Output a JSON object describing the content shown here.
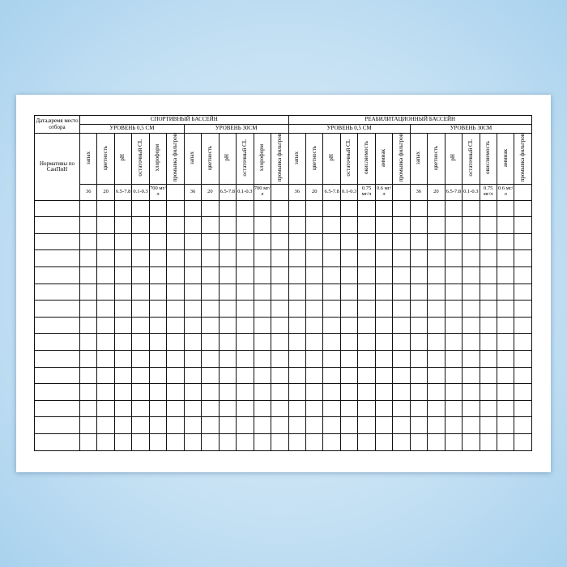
{
  "header": {
    "date_place": "Дата,время место отбора",
    "norms": "Нормативы по СанПиН"
  },
  "pools": [
    {
      "title": "СПОРТИВНЫЙ  БАССЕЙН",
      "levels": [
        {
          "title": "УРОВЕНЬ  0,5 СМ",
          "columns": [
            {
              "name": "запах",
              "norm": "36"
            },
            {
              "name": "цветность",
              "norm": "20"
            },
            {
              "name": "pH",
              "norm": "6.5-7.8"
            },
            {
              "name": "остаточный CL",
              "norm": "0.1-0.3"
            },
            {
              "name": "хлороформ",
              "norm": "700 мг/л"
            },
            {
              "name": "промывка фильтров"
            }
          ]
        },
        {
          "title": "УРОВЕНЬ 30СМ",
          "columns": [
            {
              "name": "запах",
              "norm": "36"
            },
            {
              "name": "цветность",
              "norm": "20"
            },
            {
              "name": "pH",
              "norm": "6.5-7.8"
            },
            {
              "name": "остаточный CL",
              "norm": "0.1-0.3"
            },
            {
              "name": "хлороформ",
              "norm": "700 мг/л"
            },
            {
              "name": "промывка фильтров"
            }
          ]
        }
      ]
    },
    {
      "title": "РЕАБИЛИТАЦИОННЫЙ  БАССЕЙН",
      "levels": [
        {
          "title": "УРОВЕНЬ  0,5 СМ",
          "columns": [
            {
              "name": "запах",
              "norm": "36"
            },
            {
              "name": "цветность",
              "norm": "20"
            },
            {
              "name": "pH",
              "norm": "6.5-7.8"
            },
            {
              "name": "остаточный CL",
              "norm": "0.1-0.3"
            },
            {
              "name": "окисляемость",
              "norm": "0.75 мг/л"
            },
            {
              "name": "аммиак",
              "norm": "0.6 мг/л"
            },
            {
              "name": "промывка фильтров"
            }
          ]
        },
        {
          "title": "УРОВЕНЬ 30СМ",
          "columns": [
            {
              "name": "запах",
              "norm": "36"
            },
            {
              "name": "цветность",
              "norm": "20"
            },
            {
              "name": "pH",
              "norm": "6.5-7.8"
            },
            {
              "name": "остаточный CL",
              "norm": "0.1-0.3"
            },
            {
              "name": "окисляемость",
              "norm": "0.75 мг/л"
            },
            {
              "name": "аммиак",
              "norm": "0.6 мг/л"
            },
            {
              "name": "промывка фильтров"
            }
          ]
        }
      ]
    }
  ]
}
